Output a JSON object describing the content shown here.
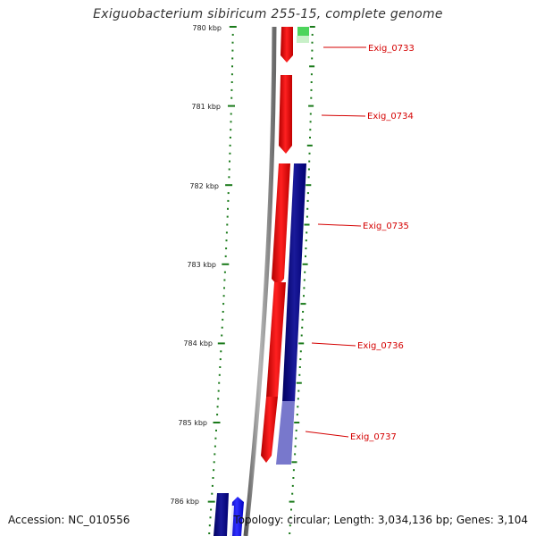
{
  "title": "Exiguobacterium sibiricum 255-15, complete genome",
  "accession_text": "Accession: NC_010556",
  "topology_text": "Topology: circular; Length: 3,034,136 bp; Genes: 3,104",
  "colors": {
    "forward_gene": "#ff0000",
    "reverse_gene": "#000080",
    "gc_skew": "#7070c8",
    "rna_gene": "#2ecc40",
    "backbone": "#808080",
    "ticks": "#1a7a1a",
    "label": "#d40000"
  },
  "kbp_labels": [
    "780 kbp",
    "781 kbp",
    "782 kbp",
    "783 kbp",
    "784 kbp",
    "785 kbp",
    "786 kbp"
  ],
  "gene_labels": [
    "Exig_0733",
    "Exig_0734",
    "Exig_0735",
    "Exig_0736",
    "Exig_0737"
  ]
}
